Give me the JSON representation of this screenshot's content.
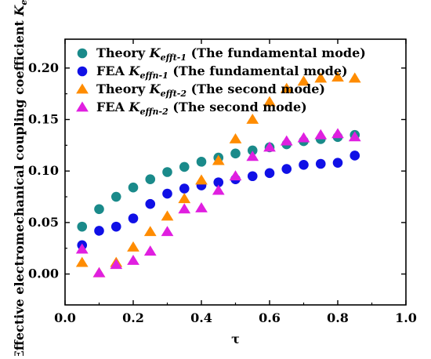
{
  "chart_data": {
    "type": "scatter",
    "xlabel": "τ",
    "ylabel": "Effective electromechanical coupling coefficient K",
    "ylabel_sub": "eff",
    "xlim": [
      0.0,
      1.0
    ],
    "ylim": [
      -0.03,
      0.228
    ],
    "x_ticks": [
      0.0,
      0.2,
      0.4,
      0.6,
      0.8,
      1.0
    ],
    "x_tick_labels": [
      "0.0",
      "0.2",
      "0.4",
      "0.6",
      "0.8",
      "1.0"
    ],
    "y_ticks": [
      0.0,
      0.05,
      0.1,
      0.15,
      0.2
    ],
    "y_tick_labels": [
      "0.00",
      "0.05",
      "0.10",
      "0.15",
      "0.20"
    ],
    "legend_position": "top-left",
    "series": [
      {
        "key": "theory-fundamental",
        "marker": "circle",
        "color": "#1a8a8a",
        "name_parts": [
          "Theory ",
          "K",
          "efft-1",
          " (The fundamental mode)"
        ],
        "x": [
          0.05,
          0.1,
          0.15,
          0.2,
          0.25,
          0.3,
          0.35,
          0.4,
          0.45,
          0.5,
          0.55,
          0.6,
          0.65,
          0.7,
          0.75,
          0.8,
          0.85
        ],
        "y": [
          0.046,
          0.063,
          0.075,
          0.084,
          0.092,
          0.099,
          0.104,
          0.109,
          0.113,
          0.117,
          0.12,
          0.123,
          0.126,
          0.129,
          0.131,
          0.133,
          0.135
        ]
      },
      {
        "key": "fea-fundamental",
        "marker": "circle",
        "color": "#1010e6",
        "name_parts": [
          "FEA ",
          "K",
          "effn-1",
          " (The fundamental mode)"
        ],
        "x": [
          0.05,
          0.1,
          0.15,
          0.2,
          0.25,
          0.3,
          0.35,
          0.4,
          0.45,
          0.5,
          0.55,
          0.6,
          0.65,
          0.7,
          0.75,
          0.8,
          0.85
        ],
        "y": [
          0.028,
          0.042,
          0.046,
          0.054,
          0.068,
          0.078,
          0.083,
          0.086,
          0.089,
          0.092,
          0.095,
          0.098,
          0.102,
          0.106,
          0.107,
          0.108,
          0.115
        ]
      },
      {
        "key": "theory-second",
        "marker": "triangle",
        "color": "#ff8c00",
        "name_parts": [
          "Theory ",
          "K",
          "efft-2",
          " (The second mode)"
        ],
        "x": [
          0.05,
          0.1,
          0.15,
          0.2,
          0.25,
          0.3,
          0.35,
          0.4,
          0.45,
          0.5,
          0.55,
          0.6,
          0.65,
          0.7,
          0.75,
          0.8,
          0.85
        ],
        "y": [
          0.011,
          0.001,
          0.011,
          0.026,
          0.041,
          0.056,
          0.073,
          0.091,
          0.11,
          0.131,
          0.15,
          0.167,
          0.18,
          0.187,
          0.19,
          0.191,
          0.19
        ]
      },
      {
        "key": "fea-second",
        "marker": "triangle",
        "color": "#e01fe0",
        "name_parts": [
          "FEA ",
          "K",
          "effn-2",
          " (The second mode)"
        ],
        "x": [
          0.05,
          0.1,
          0.15,
          0.2,
          0.25,
          0.3,
          0.35,
          0.4,
          0.45,
          0.5,
          0.55,
          0.6,
          0.65,
          0.7,
          0.75,
          0.8,
          0.85
        ],
        "y": [
          0.024,
          0.001,
          0.009,
          0.013,
          0.022,
          0.041,
          0.063,
          0.064,
          0.081,
          0.095,
          0.114,
          0.123,
          0.129,
          0.132,
          0.135,
          0.136,
          0.133
        ]
      }
    ]
  }
}
